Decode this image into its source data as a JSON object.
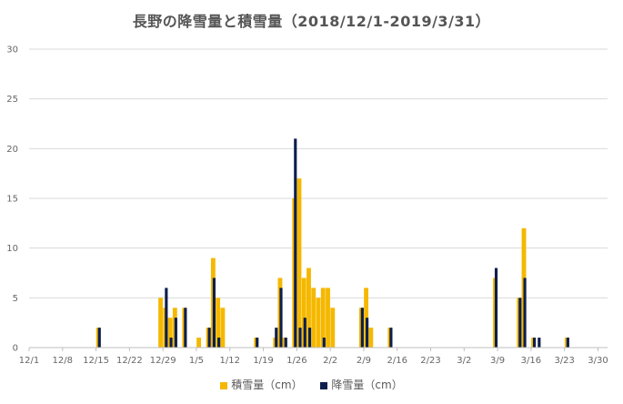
{
  "chart_data": {
    "type": "bar",
    "title": "長野の降雪量と積雪量（2018/12/1-2019/3/31）",
    "xlabel": "",
    "ylabel": "",
    "ylim": [
      0,
      30
    ],
    "yticks": [
      0,
      5,
      10,
      15,
      20,
      25,
      30
    ],
    "x_range": [
      "2018-12-01",
      "2019-03-31"
    ],
    "xticks": [
      {
        "date": "2018-12-01",
        "label": "12/1"
      },
      {
        "date": "2018-12-08",
        "label": "12/8"
      },
      {
        "date": "2018-12-15",
        "label": "12/15"
      },
      {
        "date": "2018-12-22",
        "label": "12/22"
      },
      {
        "date": "2018-12-29",
        "label": "12/29"
      },
      {
        "date": "2019-01-05",
        "label": "1/5"
      },
      {
        "date": "2019-01-12",
        "label": "1/12"
      },
      {
        "date": "2019-01-19",
        "label": "1/19"
      },
      {
        "date": "2019-01-26",
        "label": "1/26"
      },
      {
        "date": "2019-02-02",
        "label": "2/2"
      },
      {
        "date": "2019-02-09",
        "label": "2/9"
      },
      {
        "date": "2019-02-16",
        "label": "2/16"
      },
      {
        "date": "2019-02-23",
        "label": "2/23"
      },
      {
        "date": "2019-03-02",
        "label": "3/2"
      },
      {
        "date": "2019-03-09",
        "label": "3/9"
      },
      {
        "date": "2019-03-16",
        "label": "3/16"
      },
      {
        "date": "2019-03-23",
        "label": "3/23"
      },
      {
        "date": "2019-03-30",
        "label": "3/30"
      }
    ],
    "grid": true,
    "legend_position": "bottom",
    "series": [
      {
        "name": "積雪量（cm）",
        "color": "#f5b800",
        "points": [
          [
            "2018-12-15",
            2
          ],
          [
            "2018-12-28",
            5
          ],
          [
            "2018-12-29",
            4
          ],
          [
            "2018-12-30",
            3
          ],
          [
            "2018-12-31",
            4
          ],
          [
            "2019-01-02",
            4
          ],
          [
            "2019-01-05",
            1
          ],
          [
            "2019-01-07",
            2
          ],
          [
            "2019-01-08",
            9
          ],
          [
            "2019-01-09",
            5
          ],
          [
            "2019-01-10",
            4
          ],
          [
            "2019-01-17",
            1
          ],
          [
            "2019-01-21",
            1
          ],
          [
            "2019-01-22",
            7
          ],
          [
            "2019-01-23",
            1
          ],
          [
            "2019-01-25",
            15
          ],
          [
            "2019-01-26",
            17
          ],
          [
            "2019-01-27",
            7
          ],
          [
            "2019-01-28",
            8
          ],
          [
            "2019-01-29",
            6
          ],
          [
            "2019-01-30",
            5
          ],
          [
            "2019-01-31",
            6
          ],
          [
            "2019-02-01",
            6
          ],
          [
            "2019-02-02",
            4
          ],
          [
            "2019-02-08",
            4
          ],
          [
            "2019-02-09",
            6
          ],
          [
            "2019-02-10",
            2
          ],
          [
            "2019-02-14",
            2
          ],
          [
            "2019-03-08",
            7
          ],
          [
            "2019-03-13",
            5
          ],
          [
            "2019-03-14",
            12
          ],
          [
            "2019-03-16",
            1
          ],
          [
            "2019-03-23",
            1
          ]
        ]
      },
      {
        "name": "降雪量（cm）",
        "color": "#0d1f4d",
        "points": [
          [
            "2018-12-15",
            2
          ],
          [
            "2018-12-29",
            6
          ],
          [
            "2018-12-30",
            1
          ],
          [
            "2018-12-31",
            3
          ],
          [
            "2019-01-02",
            4
          ],
          [
            "2019-01-07",
            2
          ],
          [
            "2019-01-08",
            7
          ],
          [
            "2019-01-09",
            1
          ],
          [
            "2019-01-17",
            1
          ],
          [
            "2019-01-21",
            2
          ],
          [
            "2019-01-22",
            6
          ],
          [
            "2019-01-23",
            1
          ],
          [
            "2019-01-25",
            21
          ],
          [
            "2019-01-26",
            2
          ],
          [
            "2019-01-27",
            3
          ],
          [
            "2019-01-28",
            2
          ],
          [
            "2019-01-31",
            1
          ],
          [
            "2019-02-08",
            4
          ],
          [
            "2019-02-09",
            3
          ],
          [
            "2019-02-14",
            2
          ],
          [
            "2019-03-08",
            8
          ],
          [
            "2019-03-13",
            5
          ],
          [
            "2019-03-14",
            7
          ],
          [
            "2019-03-16",
            1
          ],
          [
            "2019-03-17",
            1
          ],
          [
            "2019-03-23",
            1
          ]
        ]
      }
    ]
  }
}
